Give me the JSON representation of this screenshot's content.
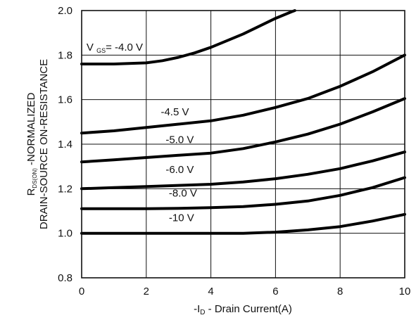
{
  "chart_data": {
    "type": "line",
    "title": "",
    "xlabel": {
      "prefix": "-I",
      "subscript": "D",
      "suffix": " - Drain Current(A)"
    },
    "ylabel": {
      "line1_prefix": "R",
      "line1_subscript": "DS(ON)",
      "line1_suffix": "  -NORMALIZED",
      "line2": "DRAIN-SOURCE ON-RESISTANCE"
    },
    "xlim": [
      0,
      10
    ],
    "ylim": [
      0.8,
      2.0
    ],
    "xticks": [
      "0",
      "2",
      "4",
      "6",
      "8",
      "10"
    ],
    "yticks": [
      "0.8",
      "1.0",
      "1.2",
      "1.4",
      "1.6",
      "1.8",
      "2.0"
    ],
    "grid": true,
    "series": [
      {
        "name": "V GS= -4.0 V",
        "label": "V GS= -4.0 V",
        "x": [
          0,
          1,
          2,
          2.5,
          3,
          3.5,
          4,
          4.5,
          5,
          5.5,
          6,
          6.5,
          6.6
        ],
        "y": [
          1.76,
          1.76,
          1.765,
          1.775,
          1.79,
          1.81,
          1.835,
          1.865,
          1.895,
          1.93,
          1.965,
          1.995,
          2.0
        ]
      },
      {
        "name": "-4.5 V",
        "label": "-4.5 V",
        "x": [
          0,
          1,
          2,
          3,
          4,
          5,
          6,
          7,
          8,
          9,
          10
        ],
        "y": [
          1.45,
          1.46,
          1.475,
          1.49,
          1.505,
          1.53,
          1.565,
          1.605,
          1.66,
          1.725,
          1.8
        ]
      },
      {
        "name": "-5.0 V",
        "label": "-5.0 V",
        "x": [
          0,
          1,
          2,
          3,
          4,
          5,
          6,
          7,
          8,
          9,
          10
        ],
        "y": [
          1.32,
          1.33,
          1.34,
          1.35,
          1.36,
          1.38,
          1.41,
          1.445,
          1.49,
          1.545,
          1.605
        ]
      },
      {
        "name": "-6.0 V",
        "label": "-6.0 V",
        "x": [
          0,
          1,
          2,
          3,
          4,
          5,
          6,
          7,
          8,
          9,
          10
        ],
        "y": [
          1.2,
          1.205,
          1.21,
          1.215,
          1.22,
          1.23,
          1.245,
          1.265,
          1.29,
          1.325,
          1.365
        ]
      },
      {
        "name": "-8.0 V",
        "label": "-8.0 V",
        "x": [
          0,
          1,
          2,
          3,
          4,
          5,
          6,
          7,
          8,
          9,
          10
        ],
        "y": [
          1.11,
          1.11,
          1.11,
          1.112,
          1.115,
          1.12,
          1.13,
          1.145,
          1.17,
          1.205,
          1.25
        ]
      },
      {
        "name": "-10 V",
        "label": "-10 V",
        "x": [
          0,
          1,
          2,
          3,
          4,
          5,
          6,
          7,
          8,
          9,
          10
        ],
        "y": [
          1.0,
          1.0,
          1.0,
          1.0,
          1.0,
          1.0,
          1.005,
          1.015,
          1.03,
          1.055,
          1.085
        ]
      }
    ]
  }
}
